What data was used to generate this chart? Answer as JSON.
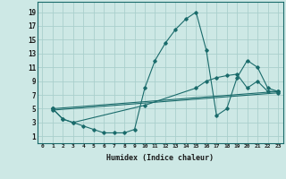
{
  "title": "",
  "xlabel": "Humidex (Indice chaleur)",
  "ylabel": "",
  "xlim": [
    -0.5,
    23.5
  ],
  "ylim": [
    0.0,
    20.5
  ],
  "yticks": [
    1,
    3,
    5,
    7,
    9,
    11,
    13,
    15,
    17,
    19
  ],
  "xticks": [
    0,
    1,
    2,
    3,
    4,
    5,
    6,
    7,
    8,
    9,
    10,
    11,
    12,
    13,
    14,
    15,
    16,
    17,
    18,
    19,
    20,
    21,
    22,
    23
  ],
  "bg_color": "#cde8e5",
  "grid_color": "#aacfcc",
  "line_color": "#1a6b6b",
  "lines": [
    {
      "x": [
        1,
        2,
        3,
        4,
        5,
        6,
        7,
        8,
        9,
        10,
        11,
        12,
        13,
        14,
        15,
        16,
        17,
        18,
        19,
        20,
        21,
        22,
        23
      ],
      "y": [
        5,
        3.5,
        3,
        2.5,
        2,
        1.5,
        1.5,
        1.5,
        2,
        8,
        12,
        14.5,
        16.5,
        18,
        19,
        13.5,
        4,
        5,
        9.5,
        12,
        11,
        8,
        7.5
      ]
    },
    {
      "x": [
        1,
        2,
        3,
        10,
        15,
        16,
        17,
        18,
        19,
        20,
        21,
        22,
        23
      ],
      "y": [
        5,
        3.5,
        3,
        5.5,
        8,
        9,
        9.5,
        9.8,
        10,
        8,
        9,
        7.5,
        7.5
      ]
    },
    {
      "x": [
        1,
        23
      ],
      "y": [
        5,
        7.5
      ]
    },
    {
      "x": [
        1,
        23
      ],
      "y": [
        4.8,
        7.3
      ]
    }
  ]
}
